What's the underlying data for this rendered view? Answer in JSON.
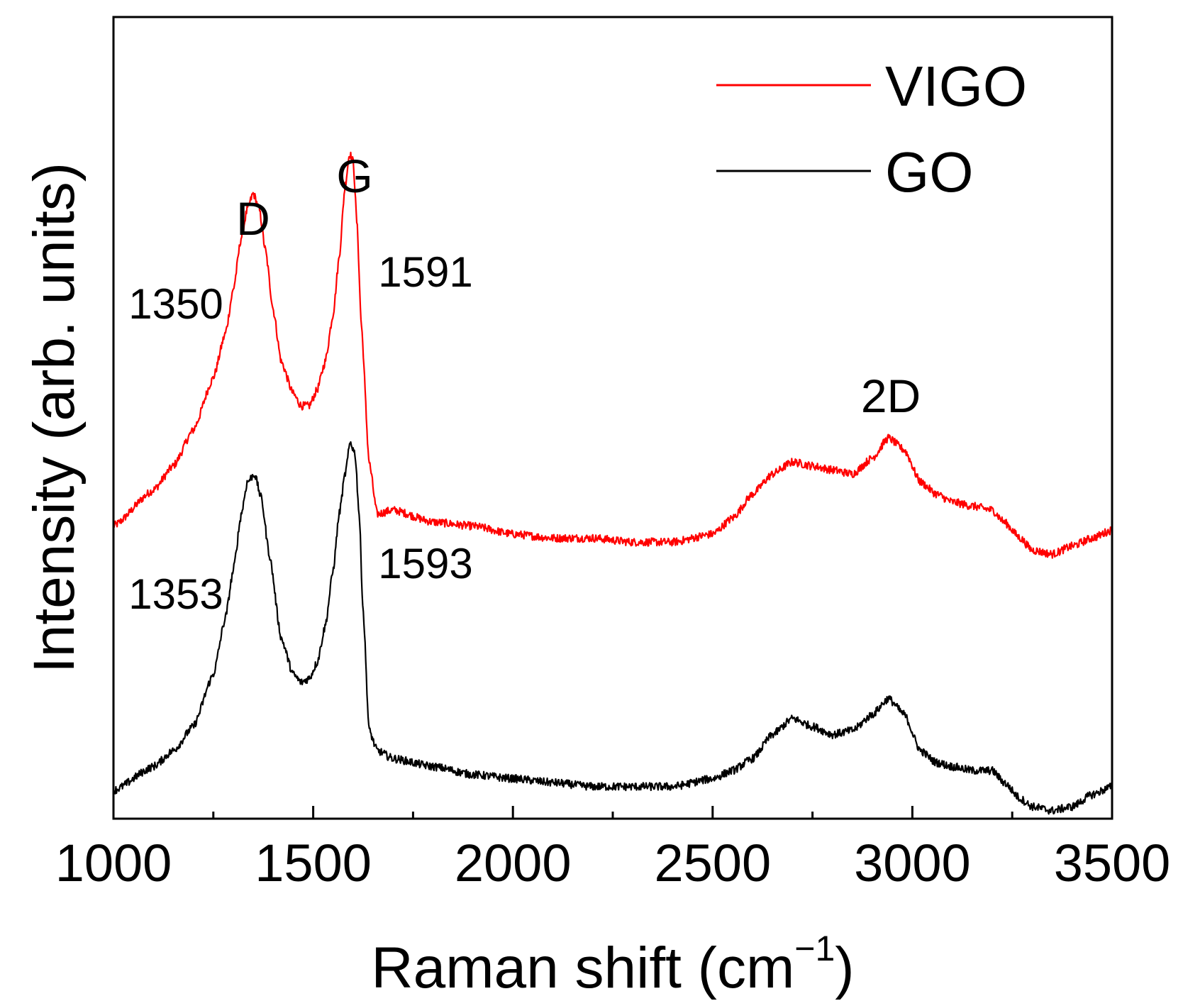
{
  "chart_data": {
    "type": "line",
    "title": "",
    "xlabel": "Raman shift (cm",
    "xlabel_sup": "−1",
    "xlabel_close": ")",
    "ylabel": "Intensity (arb. units)",
    "xlim": [
      1000,
      3500
    ],
    "ylim": [
      0,
      100
    ],
    "y_ticks_shown": false,
    "grid": false,
    "x_major_ticks": [
      1000,
      1500,
      2000,
      2500,
      3000,
      3500
    ],
    "x_tick_labels": [
      "1000",
      "1500",
      "2000",
      "2500",
      "3000",
      "3500"
    ],
    "x_minor_ticks": [
      1250,
      1750,
      2250,
      2750,
      3250
    ],
    "legend": {
      "position": "top-right",
      "entries": [
        {
          "label": "VIGO",
          "color": "#ff0000"
        },
        {
          "label": "GO",
          "color": "#000000"
        }
      ]
    },
    "series": [
      {
        "name": "VIGO",
        "color": "#ff0000",
        "noise": 0.5,
        "x": [
          1000,
          1100,
          1150,
          1200,
          1250,
          1280,
          1300,
          1320,
          1335,
          1350,
          1365,
          1380,
          1400,
          1420,
          1450,
          1470,
          1490,
          1510,
          1530,
          1550,
          1565,
          1580,
          1591,
          1600,
          1610,
          1620,
          1640,
          1660,
          1700,
          1800,
          1900,
          2000,
          2100,
          2200,
          2300,
          2400,
          2500,
          2550,
          2600,
          2650,
          2700,
          2750,
          2800,
          2850,
          2900,
          2940,
          2980,
          3020,
          3060,
          3100,
          3150,
          3200,
          3230,
          3270,
          3300,
          3350,
          3400,
          3450,
          3500
        ],
        "y": [
          36.5,
          41,
          44,
          48.5,
          55,
          60.5,
          66,
          72.5,
          76,
          78,
          76,
          71,
          63.5,
          57,
          53,
          51.5,
          51.5,
          53.5,
          57,
          63,
          70,
          79,
          83,
          82,
          74,
          62,
          44.5,
          38,
          38.5,
          37,
          36.5,
          35.5,
          35,
          35,
          34.5,
          34.5,
          35.5,
          37.5,
          40.5,
          43,
          44.5,
          44,
          43.5,
          43,
          45,
          47.5,
          46,
          42,
          40.5,
          39.5,
          39,
          38.5,
          37,
          35,
          33.5,
          33,
          34,
          35,
          36
        ]
      },
      {
        "name": "GO",
        "color": "#000000",
        "noise": 0.5,
        "x": [
          1000,
          1100,
          1150,
          1200,
          1250,
          1280,
          1300,
          1320,
          1335,
          1353,
          1370,
          1390,
          1420,
          1450,
          1470,
          1490,
          1510,
          1530,
          1550,
          1565,
          1580,
          1593,
          1605,
          1615,
          1625,
          1640,
          1660,
          1700,
          1800,
          1900,
          2000,
          2100,
          2200,
          2300,
          2400,
          2500,
          2550,
          2600,
          2650,
          2700,
          2750,
          2800,
          2850,
          2900,
          2940,
          2980,
          3020,
          3060,
          3100,
          3150,
          3200,
          3230,
          3270,
          3300,
          3350,
          3400,
          3450,
          3500
        ],
        "y": [
          3.5,
          6.5,
          8.5,
          11.5,
          18,
          25,
          31,
          38,
          42,
          43,
          40,
          33,
          22.5,
          18,
          17,
          17.5,
          19.5,
          24,
          31,
          38,
          43,
          47,
          45.5,
          38,
          26,
          11,
          8.5,
          7.5,
          6.5,
          5.5,
          5,
          4.5,
          4,
          4,
          4,
          5,
          6,
          7.5,
          10.5,
          12.5,
          11.5,
          10.5,
          11,
          13,
          15,
          13,
          8.5,
          7,
          6.5,
          6,
          6,
          4.5,
          2.5,
          1.5,
          1,
          1.5,
          3,
          4
        ]
      }
    ],
    "annotations": [
      {
        "text": "1350",
        "series": "VIGO",
        "x": 1350
      },
      {
        "text": "1591",
        "series": "VIGO",
        "x": 1591
      },
      {
        "text": "1353",
        "series": "GO",
        "x": 1353
      },
      {
        "text": "1593",
        "series": "GO",
        "x": 1593
      },
      {
        "text": "D",
        "x": 1350
      },
      {
        "text": "G",
        "x": 1591
      },
      {
        "text": "2D",
        "x": 2940
      }
    ]
  }
}
